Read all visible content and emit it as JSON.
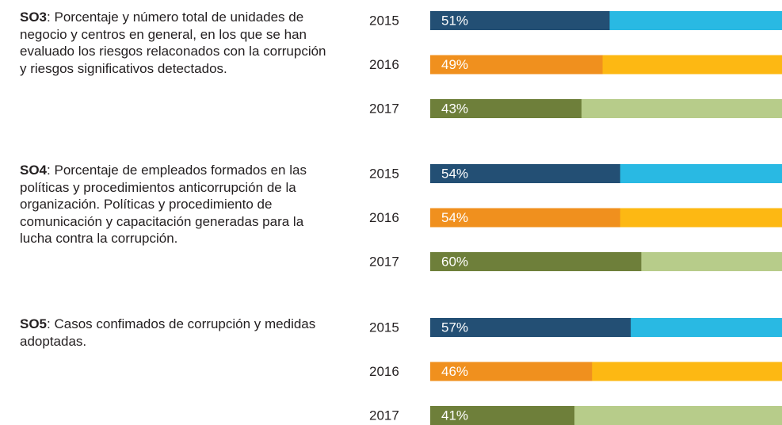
{
  "chart_data": [
    {
      "type": "bar",
      "title": "SO3",
      "description": ": Porcentaje y número total de unidades de negocio y centros en general, en los que se han evaluado los riesgos relaconados con la corrupción y riesgos significativos detectados.",
      "categories": [
        "2015",
        "2016",
        "2017"
      ],
      "values": [
        51,
        49,
        43
      ],
      "value_labels": [
        "51%",
        "49%",
        "43%"
      ],
      "xlim": [
        0,
        100
      ],
      "colors": [
        "#234f74",
        "#f0901e",
        "#6e7f3a"
      ],
      "track_colors": [
        "#29b9e3",
        "#fdb813",
        "#b7cc8a"
      ]
    },
    {
      "type": "bar",
      "title": "SO4",
      "description": ": Porcentaje de empleados formados en las políticas y procedimientos anticorrupción de la organización. Políticas y procedimiento de comunicación y capacitación generadas para la lucha contra la corrupción.",
      "categories": [
        "2015",
        "2016",
        "2017"
      ],
      "values": [
        54,
        54,
        60
      ],
      "value_labels": [
        "54%",
        "54%",
        "60%"
      ],
      "xlim": [
        0,
        100
      ],
      "colors": [
        "#234f74",
        "#f0901e",
        "#6e7f3a"
      ],
      "track_colors": [
        "#29b9e3",
        "#fdb813",
        "#b7cc8a"
      ]
    },
    {
      "type": "bar",
      "title": "SO5",
      "description": ": Casos confimados de corrupción y medidas adoptadas.",
      "categories": [
        "2015",
        "2016",
        "2017"
      ],
      "values": [
        57,
        46,
        41
      ],
      "value_labels": [
        "57%",
        "46%",
        "41%"
      ],
      "xlim": [
        0,
        100
      ],
      "colors": [
        "#234f74",
        "#f0901e",
        "#6e7f3a"
      ],
      "track_colors": [
        "#29b9e3",
        "#fdb813",
        "#b7cc8a"
      ]
    }
  ]
}
